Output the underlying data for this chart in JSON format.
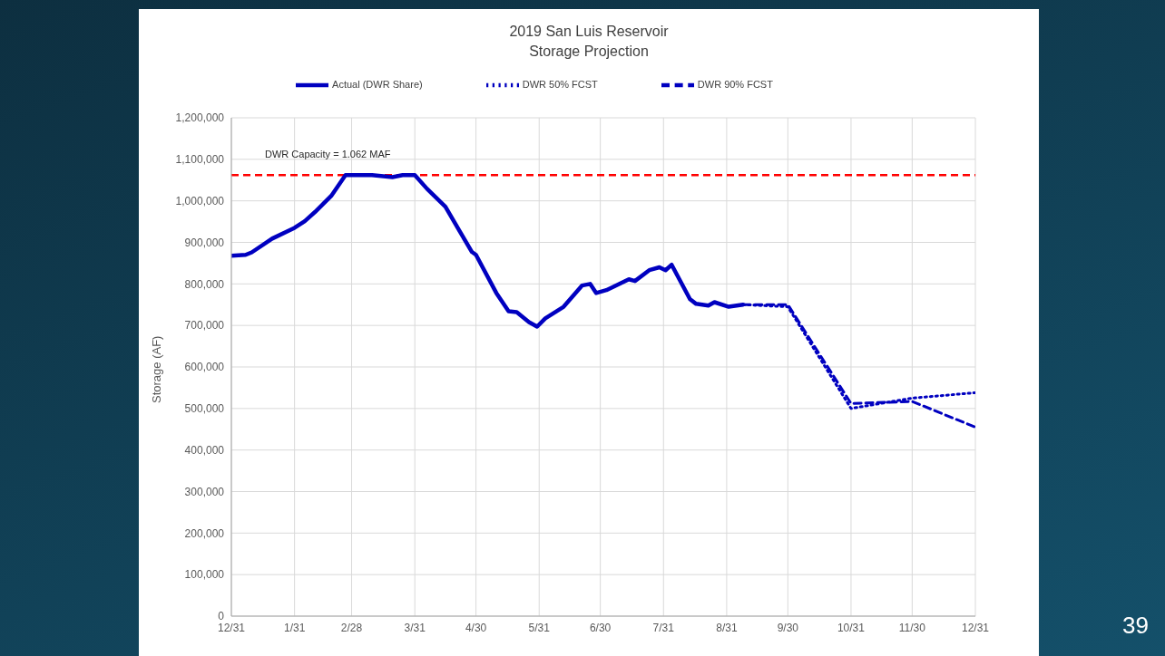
{
  "chart_data": {
    "type": "line",
    "title": "2019 San Luis Reservoir\nStorage Projection",
    "ylabel": "Storage (AF)",
    "xlim": [
      "2018-12-31",
      "2019-12-31"
    ],
    "xticks": [
      {
        "value": "2018-12-31",
        "label": "12/31"
      },
      {
        "value": "2019-01-31",
        "label": "1/31"
      },
      {
        "value": "2019-02-28",
        "label": "2/28"
      },
      {
        "value": "2019-03-31",
        "label": "3/31"
      },
      {
        "value": "2019-04-30",
        "label": "4/30"
      },
      {
        "value": "2019-05-31",
        "label": "5/31"
      },
      {
        "value": "2019-06-30",
        "label": "6/30"
      },
      {
        "value": "2019-07-31",
        "label": "7/31"
      },
      {
        "value": "2019-08-31",
        "label": "8/31"
      },
      {
        "value": "2019-09-30",
        "label": "9/30"
      },
      {
        "value": "2019-10-31",
        "label": "10/31"
      },
      {
        "value": "2019-11-30",
        "label": "11/30"
      },
      {
        "value": "2019-12-31",
        "label": "12/31"
      }
    ],
    "ylim": [
      0,
      1200000
    ],
    "yticks": [
      {
        "value": 0,
        "label": "0"
      },
      {
        "value": 100000,
        "label": "100,000"
      },
      {
        "value": 200000,
        "label": "200,000"
      },
      {
        "value": 300000,
        "label": "300,000"
      },
      {
        "value": 400000,
        "label": "400,000"
      },
      {
        "value": 500000,
        "label": "500,000"
      },
      {
        "value": 600000,
        "label": "600,000"
      },
      {
        "value": 700000,
        "label": "700,000"
      },
      {
        "value": 800000,
        "label": "800,000"
      },
      {
        "value": 900000,
        "label": "900,000"
      },
      {
        "value": 1000000,
        "label": "1,000,000"
      },
      {
        "value": 1100000,
        "label": "1,100,000"
      },
      {
        "value": 1200000,
        "label": "1,200,000"
      }
    ],
    "grid": true,
    "legend": "top",
    "marker": "none",
    "series": [
      {
        "name": "Actual (DWR Share)",
        "color": "#0000c0",
        "line_style": "solid",
        "x": [
          "2018-12-31",
          "2019-01-07",
          "2019-01-10",
          "2019-01-20",
          "2019-01-31",
          "2019-02-05",
          "2019-02-10",
          "2019-02-18",
          "2019-02-25",
          "2019-03-10",
          "2019-03-20",
          "2019-03-25",
          "2019-03-31",
          "2019-04-06",
          "2019-04-15",
          "2019-04-22",
          "2019-04-28",
          "2019-04-30",
          "2019-05-10",
          "2019-05-16",
          "2019-05-20",
          "2019-05-26",
          "2019-05-30",
          "2019-06-03",
          "2019-06-12",
          "2019-06-21",
          "2019-06-25",
          "2019-06-28",
          "2019-07-03",
          "2019-07-14",
          "2019-07-17",
          "2019-07-24",
          "2019-07-29",
          "2019-08-01",
          "2019-08-04",
          "2019-08-13",
          "2019-08-16",
          "2019-08-22",
          "2019-08-25",
          "2019-09-01",
          "2019-09-08"
        ],
        "values": [
          868000,
          870000,
          876000,
          909000,
          935000,
          951000,
          973000,
          1012000,
          1062000,
          1062000,
          1057000,
          1062000,
          1062000,
          1029000,
          986000,
          927000,
          877000,
          870000,
          778000,
          734000,
          732000,
          708000,
          697000,
          717000,
          745000,
          796000,
          800000,
          778000,
          785000,
          811000,
          807000,
          833000,
          840000,
          833000,
          846000,
          763000,
          752000,
          748000,
          756000,
          745000,
          750000
        ]
      },
      {
        "name": "DWR 50% FCST",
        "color": "#0000c0",
        "line_style": "dotted",
        "x": [
          "2019-09-08",
          "2019-09-30",
          "2019-10-31",
          "2019-11-30",
          "2019-12-31"
        ],
        "values": [
          750000,
          745000,
          500000,
          525000,
          538000
        ]
      },
      {
        "name": "DWR 90% FCST",
        "color": "#0000c0",
        "line_style": "dashed",
        "x": [
          "2019-09-08",
          "2019-09-30",
          "2019-10-31",
          "2019-11-30",
          "2019-12-31"
        ],
        "values": [
          750000,
          750000,
          512000,
          517000,
          455000
        ]
      }
    ],
    "ref_lines": [
      {
        "axis": "y",
        "value": 1062000,
        "color": "#ff0000",
        "line_style": "dashed"
      }
    ],
    "annotations": [
      "DWR Capacity = 1.062 MAF",
      "39"
    ]
  }
}
